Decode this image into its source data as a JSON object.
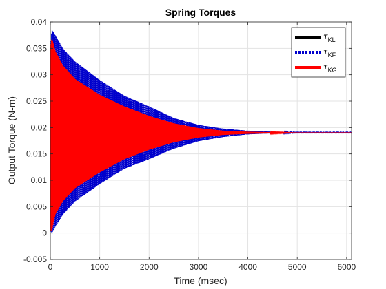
{
  "chart_data": {
    "type": "line",
    "title": "Spring Torques",
    "xlabel": "Time (msec)",
    "ylabel": "Output Torque (N-m)",
    "xlim": [
      0,
      6100
    ],
    "ylim": [
      -0.005,
      0.04
    ],
    "xticks": [
      0,
      1000,
      2000,
      3000,
      4000,
      5000,
      6000
    ],
    "yticks": [
      -0.005,
      0,
      0.005,
      0.01,
      0.015,
      0.02,
      0.025,
      0.03,
      0.035,
      0.04
    ],
    "xtick_labels": [
      "0",
      "1000",
      "2000",
      "3000",
      "4000",
      "5000",
      "6000"
    ],
    "ytick_labels": [
      "-0.005",
      "0",
      "0.005",
      "0.01",
      "0.015",
      "0.02",
      "0.025",
      "0.03",
      "0.035",
      "0.04"
    ],
    "grid": true,
    "legend_position": "top-right",
    "steady_state_value": 0.019,
    "series": [
      {
        "name": "τ",
        "subscript": "KL",
        "color": "#000000",
        "line_style": "solid",
        "envelope": {
          "time": [
            0,
            100,
            250,
            500,
            1000,
            1500,
            2000,
            2500,
            3000,
            3500,
            4000,
            4500,
            5000,
            5500,
            6100
          ],
          "upper": [
            0.0195,
            0.0195,
            0.0194,
            0.0193,
            0.0192,
            0.0191,
            0.0191,
            0.019,
            0.019,
            0.019,
            0.019,
            0.019,
            0.019,
            0.019,
            0.019
          ],
          "lower": [
            0.0185,
            0.0186,
            0.0187,
            0.0187,
            0.0188,
            0.0189,
            0.0189,
            0.019,
            0.019,
            0.019,
            0.019,
            0.019,
            0.019,
            0.019,
            0.019
          ]
        }
      },
      {
        "name": "τ",
        "subscript": "KF",
        "color": "#0000cc",
        "line_style": "dotted",
        "envelope": {
          "time": [
            0,
            30,
            100,
            250,
            500,
            1000,
            1500,
            2000,
            2500,
            3000,
            3500,
            4000,
            4500,
            5000,
            5500,
            6100
          ],
          "upper": [
            0.035,
            0.0385,
            0.0375,
            0.035,
            0.0325,
            0.029,
            0.026,
            0.024,
            0.0218,
            0.0205,
            0.0198,
            0.0194,
            0.0192,
            0.0191,
            0.0191,
            0.0191
          ],
          "lower": [
            0.0005,
            0.0,
            0.0012,
            0.0035,
            0.006,
            0.0093,
            0.0122,
            0.014,
            0.016,
            0.0174,
            0.0182,
            0.0187,
            0.0189,
            0.019,
            0.019,
            0.019
          ]
        }
      },
      {
        "name": "τ",
        "subscript": "KG",
        "color": "#ff0000",
        "line_style": "solid",
        "envelope": {
          "time": [
            0,
            30,
            100,
            250,
            500,
            1000,
            1500,
            2000,
            2500,
            3000,
            3500,
            4000,
            4500,
            5000,
            5500,
            6100
          ],
          "upper": [
            0.035,
            0.037,
            0.0345,
            0.0318,
            0.0292,
            0.0262,
            0.024,
            0.0222,
            0.0208,
            0.0199,
            0.0194,
            0.0192,
            0.0191,
            0.019,
            0.019,
            0.019
          ],
          "lower": [
            0.0005,
            0.0005,
            0.0035,
            0.006,
            0.0085,
            0.0115,
            0.014,
            0.0158,
            0.0172,
            0.0181,
            0.0186,
            0.0188,
            0.0189,
            0.019,
            0.019,
            0.019
          ]
        }
      }
    ]
  }
}
